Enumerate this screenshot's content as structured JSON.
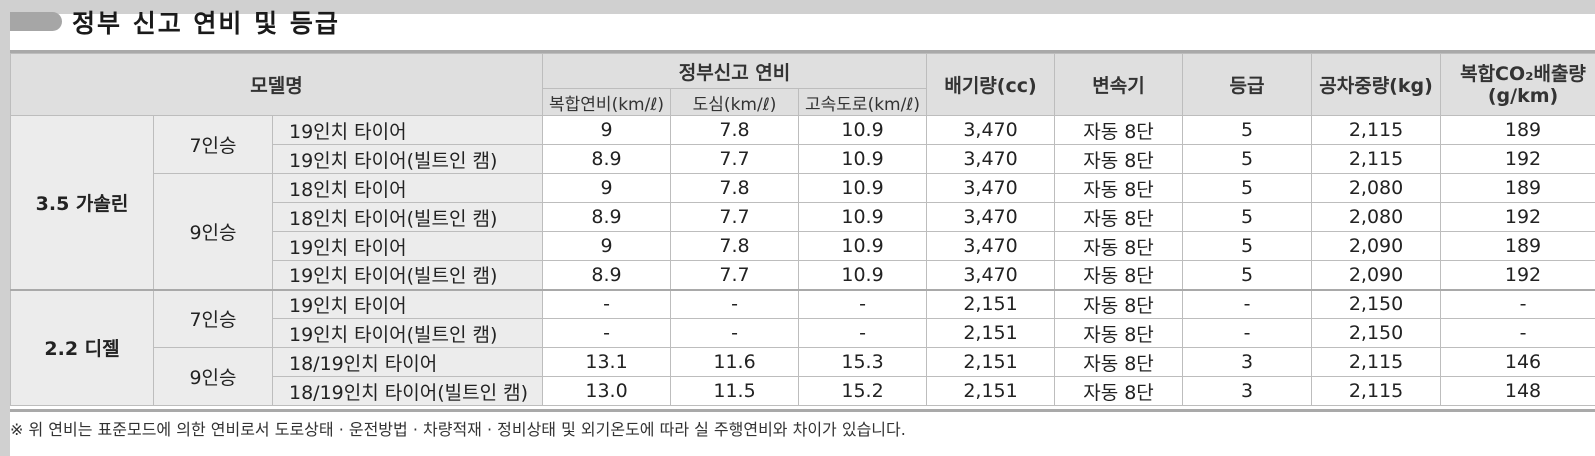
{
  "section": {
    "title": "정부 신고 연비 및 등급"
  },
  "table": {
    "headers": {
      "model": "모델명",
      "fuel_group": "정부신고 연비",
      "combined": "복합연비(km/ℓ)",
      "city": "도심(km/ℓ)",
      "highway": "고속도로(km/ℓ)",
      "displacement": "배기량(cc)",
      "transmission": "변속기",
      "grade": "등급",
      "curb_weight": "공차중량(kg)",
      "co2_line1": "복합CO₂배출량",
      "co2_line2": "(g/km)"
    },
    "groups": [
      {
        "engine": "3.5 가솔린",
        "seat_groups": [
          {
            "seats": "7인승",
            "rows": [
              {
                "trim": "19인치 타이어",
                "combined": "9",
                "city": "7.8",
                "highway": "10.9",
                "displacement": "3,470",
                "transmission": "자동 8단",
                "grade": "5",
                "weight": "2,115",
                "co2": "189"
              },
              {
                "trim": "19인치 타이어(빌트인 캠)",
                "combined": "8.9",
                "city": "7.7",
                "highway": "10.9",
                "displacement": "3,470",
                "transmission": "자동 8단",
                "grade": "5",
                "weight": "2,115",
                "co2": "192"
              }
            ]
          },
          {
            "seats": "9인승",
            "rows": [
              {
                "trim": "18인치 타이어",
                "combined": "9",
                "city": "7.8",
                "highway": "10.9",
                "displacement": "3,470",
                "transmission": "자동 8단",
                "grade": "5",
                "weight": "2,080",
                "co2": "189"
              },
              {
                "trim": "18인치 타이어(빌트인 캠)",
                "combined": "8.9",
                "city": "7.7",
                "highway": "10.9",
                "displacement": "3,470",
                "transmission": "자동 8단",
                "grade": "5",
                "weight": "2,080",
                "co2": "192"
              },
              {
                "trim": "19인치 타이어",
                "combined": "9",
                "city": "7.8",
                "highway": "10.9",
                "displacement": "3,470",
                "transmission": "자동 8단",
                "grade": "5",
                "weight": "2,090",
                "co2": "189"
              },
              {
                "trim": "19인치 타이어(빌트인 캠)",
                "combined": "8.9",
                "city": "7.7",
                "highway": "10.9",
                "displacement": "3,470",
                "transmission": "자동 8단",
                "grade": "5",
                "weight": "2,090",
                "co2": "192"
              }
            ]
          }
        ]
      },
      {
        "engine": "2.2 디젤",
        "seat_groups": [
          {
            "seats": "7인승",
            "rows": [
              {
                "trim": "19인치 타이어",
                "combined": "-",
                "city": "-",
                "highway": "-",
                "displacement": "2,151",
                "transmission": "자동 8단",
                "grade": "-",
                "weight": "2,150",
                "co2": "-"
              },
              {
                "trim": "19인치 타이어(빌트인 캠)",
                "combined": "-",
                "city": "-",
                "highway": "-",
                "displacement": "2,151",
                "transmission": "자동 8단",
                "grade": "-",
                "weight": "2,150",
                "co2": "-"
              }
            ]
          },
          {
            "seats": "9인승",
            "rows": [
              {
                "trim": "18/19인치 타이어",
                "combined": "13.1",
                "city": "11.6",
                "highway": "15.3",
                "displacement": "2,151",
                "transmission": "자동 8단",
                "grade": "3",
                "weight": "2,115",
                "co2": "146"
              },
              {
                "trim": "18/19인치 타이어(빌트인 캠)",
                "combined": "13.0",
                "city": "11.5",
                "highway": "15.2",
                "displacement": "2,151",
                "transmission": "자동 8단",
                "grade": "3",
                "weight": "2,115",
                "co2": "148"
              }
            ]
          }
        ]
      }
    ]
  },
  "footnote": "※ 위 연비는 표준모드에 의한 연비로서 도로상태 · 운전방법 · 차량적재 · 정비상태 및 외기온도에 따라 실 주행연비와 차이가 있습니다.",
  "colors": {
    "header_bg": "#dfdfdf",
    "label_bg": "#ececec",
    "rule": "#a9a9a9"
  }
}
